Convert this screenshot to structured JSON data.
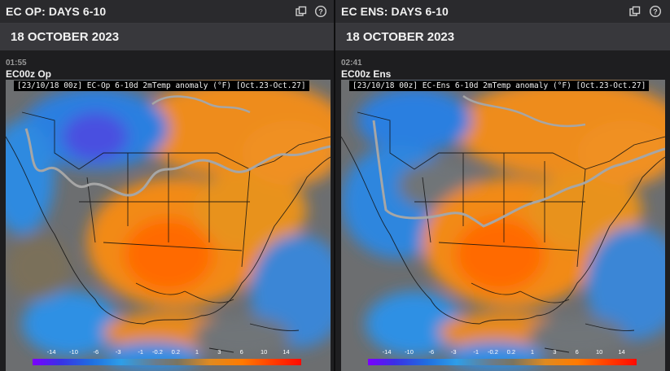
{
  "panels": [
    {
      "id": "left",
      "title": "EC OP: DAYS 6-10",
      "date": "18 OCTOBER 2023",
      "time": "01:55",
      "model": "EC00z Op",
      "caption": "[23/10/18 00z] EC-Op 6-10d 2mTemp anomaly (°F) [Oct.23-Oct.27]",
      "icons": [
        "popout-icon",
        "help-icon"
      ]
    },
    {
      "id": "right",
      "title": "EC ENS: DAYS 6-10",
      "date": "18 OCTOBER 2023",
      "time": "02:41",
      "model": "EC00z Ens",
      "caption": "[23/10/18 00z] EC-Ens 6-10d 2mTemp anomaly (°F) [Oct.23-Oct.27]",
      "icons": [
        "popout-icon",
        "help-icon"
      ]
    }
  ],
  "legend": {
    "ticks": [
      "-14",
      "-10",
      "-6",
      "-3",
      "-1",
      "-0.2",
      "0.2",
      "1",
      "3",
      "6",
      "10",
      "14"
    ]
  },
  "colors": {
    "cold_extreme": "#7b00ff",
    "cold": "#2e8ae0",
    "neutral": "#6f7478",
    "warm": "#f08a1a",
    "hot": "#ff3a00",
    "freeze_line": "#a0a0a0"
  }
}
